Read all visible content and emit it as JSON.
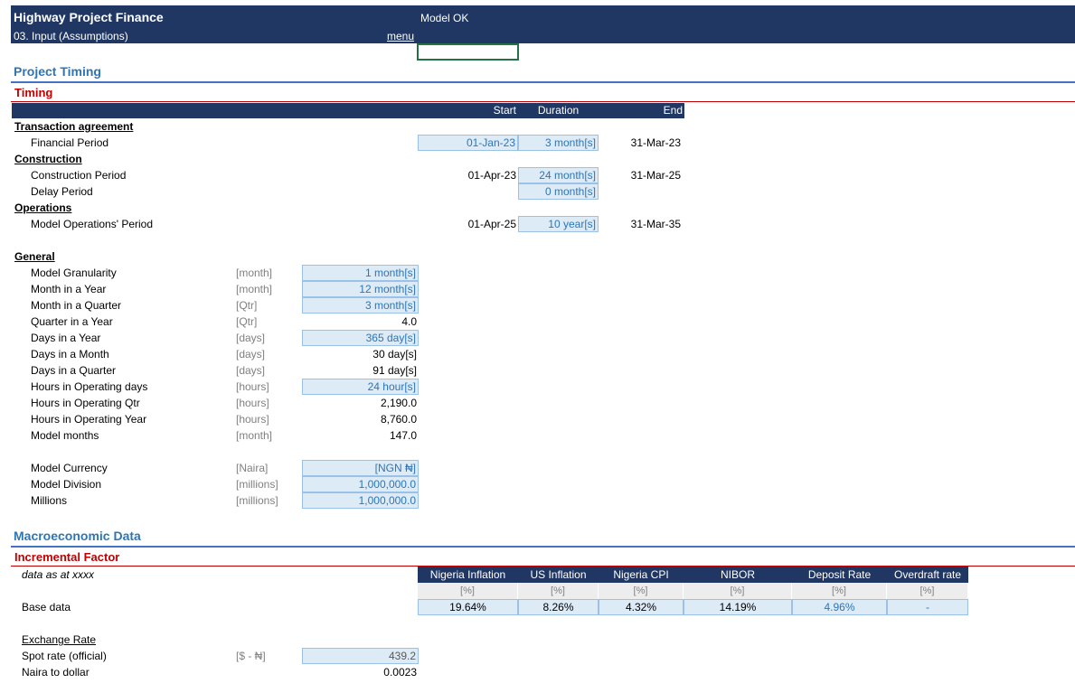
{
  "header": {
    "title": "Highway Project Finance",
    "status": "Model OK",
    "subtitle": "03. Input (Assumptions)",
    "menu": "menu"
  },
  "timing": {
    "section": "Project Timing",
    "title": "Timing",
    "columns": [
      "Start",
      "Duration",
      "End"
    ],
    "groups": [
      {
        "name": "Transaction agreement",
        "rows": [
          {
            "label": "Financial Period",
            "start": "01-Jan-23",
            "duration": "3 month[s]",
            "end": "31-Mar-23"
          }
        ]
      },
      {
        "name": "Construction",
        "rows": [
          {
            "label": "Construction Period",
            "start": "01-Apr-23",
            "duration": "24 month[s]",
            "end": "31-Mar-25"
          },
          {
            "label": "Delay Period",
            "duration": "0 month[s]"
          }
        ]
      },
      {
        "name": "Operations",
        "rows": [
          {
            "label": "Model Operations' Period",
            "start": "01-Apr-25",
            "duration": "10 year[s]",
            "end": "31-Mar-35"
          }
        ]
      }
    ]
  },
  "general": {
    "name": "General",
    "rows": [
      {
        "label": "Model Granularity",
        "unit": "[month]",
        "value": "1 month[s]"
      },
      {
        "label": "Month in a Year",
        "unit": "[month]",
        "value": "12 month[s]"
      },
      {
        "label": "Month in a Quarter",
        "unit": "[Qtr]",
        "value": "3 month[s]"
      },
      {
        "label": "Quarter in a Year",
        "unit": "[Qtr]",
        "value": "4.0"
      },
      {
        "label": "Days in a Year",
        "unit": "[days]",
        "value": "365 day[s]"
      },
      {
        "label": "Days in a Month",
        "unit": "[days]",
        "value": "30 day[s]"
      },
      {
        "label": "Days in a Quarter",
        "unit": "[days]",
        "value": "91 day[s]"
      },
      {
        "label": "Hours in Operating days",
        "unit": "[hours]",
        "value": "24 hour[s]"
      },
      {
        "label": "Hours in Operating Qtr",
        "unit": "[hours]",
        "value": "2,190.0"
      },
      {
        "label": "Hours in Operating Year",
        "unit": "[hours]",
        "value": "8,760.0"
      },
      {
        "label": "Model months",
        "unit": "[month]",
        "value": "147.0"
      }
    ],
    "currency": [
      {
        "label": "Model Currency",
        "unit": "[Naira]",
        "value": "[NGN ₦]"
      },
      {
        "label": "Model Division",
        "unit": "[millions]",
        "value": "1,000,000.0"
      },
      {
        "label": "Millions",
        "unit": "[millions]",
        "value": "1,000,000.0"
      }
    ]
  },
  "macro": {
    "section": "Macroeconomic Data",
    "title": "Incremental Factor",
    "note": "data as at xxxx",
    "columns": [
      {
        "name": "Nigeria Inflation",
        "unit": "[%]",
        "value": "19.64%"
      },
      {
        "name": "US Inflation",
        "unit": "[%]",
        "value": "8.26%"
      },
      {
        "name": "Nigeria CPI",
        "unit": "[%]",
        "value": "4.32%"
      },
      {
        "name": "NIBOR",
        "unit": "[%]",
        "value": "14.19%"
      },
      {
        "name": "Deposit Rate",
        "unit": "[%]",
        "value": "4.96%"
      },
      {
        "name": "Overdraft rate",
        "unit": "[%]",
        "value": "-"
      }
    ],
    "row_label": "Base data",
    "exchange": {
      "name": "Exchange Rate",
      "rows": [
        {
          "label": "Spot rate (official)",
          "unit": "[$ - ₦]",
          "value": "439.2"
        },
        {
          "label": "Naira to dollar",
          "value": "0.0023"
        }
      ]
    }
  }
}
